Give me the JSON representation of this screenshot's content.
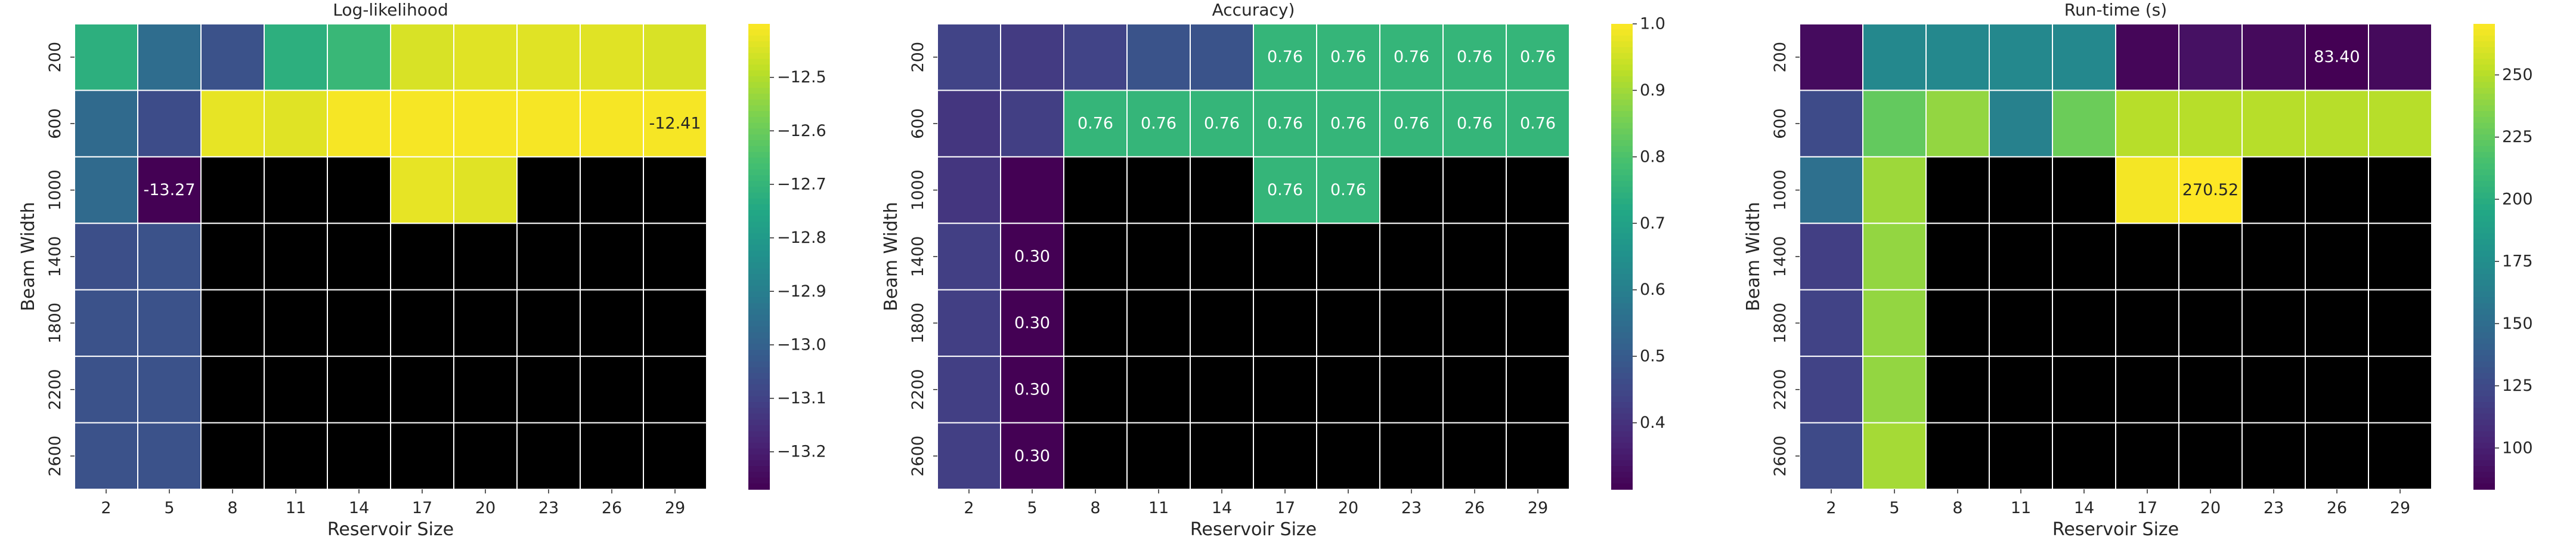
{
  "chart_data": [
    {
      "type": "heatmap",
      "title": "Log-likelihood",
      "xlabel": "Reservoir Size",
      "ylabel": "Beam Width",
      "x": [
        "2",
        "5",
        "8",
        "11",
        "14",
        "17",
        "20",
        "23",
        "26",
        "29"
      ],
      "y": [
        "200",
        "600",
        "1000",
        "1400",
        "1800",
        "2200",
        "2600"
      ],
      "values": [
        [
          -12.72,
          -12.96,
          -13.05,
          -12.72,
          -12.69,
          -12.45,
          -12.44,
          -12.44,
          -12.44,
          -12.45
        ],
        [
          -12.97,
          -13.07,
          -12.43,
          -12.44,
          -12.41,
          -12.41,
          -12.41,
          -12.41,
          -12.41,
          -12.41
        ],
        [
          -12.97,
          -13.27,
          null,
          null,
          null,
          -12.43,
          -12.44,
          null,
          null,
          null
        ],
        [
          -13.06,
          -13.05,
          null,
          null,
          null,
          null,
          null,
          null,
          null,
          null
        ],
        [
          -13.05,
          -13.05,
          null,
          null,
          null,
          null,
          null,
          null,
          null,
          null
        ],
        [
          -13.05,
          -13.05,
          null,
          null,
          null,
          null,
          null,
          null,
          null,
          null
        ],
        [
          -13.05,
          -13.05,
          null,
          null,
          null,
          null,
          null,
          null,
          null,
          null
        ]
      ],
      "annotations": [
        {
          "row": 2,
          "col": 1,
          "text": "-13.27",
          "color": "#ffffff"
        },
        {
          "row": 1,
          "col": 9,
          "text": "-12.41",
          "color": "#262626"
        }
      ],
      "colorbar": {
        "min": -13.27,
        "max": -12.4,
        "ticks": [
          -13.2,
          -13.1,
          -13.0,
          -12.9,
          -12.8,
          -12.7,
          -12.6,
          -12.5
        ],
        "tick_labels": [
          "−13.2",
          "−13.1",
          "−13.0",
          "−12.9",
          "−12.8",
          "−12.7",
          "−12.6",
          "−12.5"
        ]
      },
      "missing_color": "#000000"
    },
    {
      "type": "heatmap",
      "title": "Accuracy)",
      "xlabel": "Reservoir Size",
      "ylabel": "Beam Width",
      "x": [
        "2",
        "5",
        "8",
        "11",
        "14",
        "17",
        "20",
        "23",
        "26",
        "29"
      ],
      "y": [
        "200",
        "600",
        "1000",
        "1400",
        "1800",
        "2200",
        "2600"
      ],
      "values": [
        [
          0.44,
          0.42,
          0.44,
          0.48,
          0.48,
          0.76,
          0.76,
          0.76,
          0.76,
          0.76
        ],
        [
          0.41,
          0.43,
          0.76,
          0.76,
          0.76,
          0.76,
          0.76,
          0.76,
          0.76,
          0.76
        ],
        [
          0.41,
          0.3,
          null,
          null,
          null,
          0.76,
          0.76,
          null,
          null,
          null
        ],
        [
          0.43,
          0.3,
          null,
          null,
          null,
          null,
          null,
          null,
          null,
          null
        ],
        [
          0.43,
          0.3,
          null,
          null,
          null,
          null,
          null,
          null,
          null,
          null
        ],
        [
          0.43,
          0.3,
          null,
          null,
          null,
          null,
          null,
          null,
          null,
          null
        ],
        [
          0.43,
          0.3,
          null,
          null,
          null,
          null,
          null,
          null,
          null,
          null
        ]
      ],
      "annotations": [
        {
          "row": 0,
          "col": 5,
          "text": "0.76",
          "color": "#ffffff"
        },
        {
          "row": 0,
          "col": 6,
          "text": "0.76",
          "color": "#ffffff"
        },
        {
          "row": 0,
          "col": 7,
          "text": "0.76",
          "color": "#ffffff"
        },
        {
          "row": 0,
          "col": 8,
          "text": "0.76",
          "color": "#ffffff"
        },
        {
          "row": 0,
          "col": 9,
          "text": "0.76",
          "color": "#ffffff"
        },
        {
          "row": 1,
          "col": 2,
          "text": "0.76",
          "color": "#ffffff"
        },
        {
          "row": 1,
          "col": 3,
          "text": "0.76",
          "color": "#ffffff"
        },
        {
          "row": 1,
          "col": 4,
          "text": "0.76",
          "color": "#ffffff"
        },
        {
          "row": 1,
          "col": 5,
          "text": "0.76",
          "color": "#ffffff"
        },
        {
          "row": 1,
          "col": 6,
          "text": "0.76",
          "color": "#ffffff"
        },
        {
          "row": 1,
          "col": 7,
          "text": "0.76",
          "color": "#ffffff"
        },
        {
          "row": 1,
          "col": 8,
          "text": "0.76",
          "color": "#ffffff"
        },
        {
          "row": 1,
          "col": 9,
          "text": "0.76",
          "color": "#ffffff"
        },
        {
          "row": 2,
          "col": 5,
          "text": "0.76",
          "color": "#ffffff"
        },
        {
          "row": 2,
          "col": 6,
          "text": "0.76",
          "color": "#ffffff"
        },
        {
          "row": 3,
          "col": 1,
          "text": "0.30",
          "color": "#ffffff"
        },
        {
          "row": 4,
          "col": 1,
          "text": "0.30",
          "color": "#ffffff"
        },
        {
          "row": 5,
          "col": 1,
          "text": "0.30",
          "color": "#ffffff"
        },
        {
          "row": 6,
          "col": 1,
          "text": "0.30",
          "color": "#ffffff"
        }
      ],
      "colorbar": {
        "min": 0.3,
        "max": 1.0,
        "ticks": [
          0.4,
          0.5,
          0.6,
          0.7,
          0.8,
          0.9,
          1.0
        ],
        "tick_labels": [
          "0.4",
          "0.5",
          "0.6",
          "0.7",
          "0.8",
          "0.9",
          "1.0"
        ]
      },
      "missing_color": "#000000"
    },
    {
      "type": "heatmap",
      "title": "Run-time (s)",
      "xlabel": "Reservoir Size",
      "ylabel": "Beam Width",
      "x": [
        "2",
        "5",
        "8",
        "11",
        "14",
        "17",
        "20",
        "23",
        "26",
        "29"
      ],
      "y": [
        "200",
        "600",
        "1000",
        "1400",
        "1800",
        "2200",
        "2600"
      ],
      "values": [
        [
          89,
          170,
          170,
          170,
          170,
          86,
          92,
          88,
          83.4,
          88
        ],
        [
          126,
          225,
          240,
          165,
          228,
          250,
          250,
          250,
          250,
          250
        ],
        [
          152,
          243,
          null,
          null,
          null,
          268,
          270.52,
          null,
          null,
          null
        ],
        [
          118,
          240,
          null,
          null,
          null,
          null,
          null,
          null,
          null,
          null
        ],
        [
          120,
          240,
          null,
          null,
          null,
          null,
          null,
          null,
          null,
          null
        ],
        [
          120,
          240,
          null,
          null,
          null,
          null,
          null,
          null,
          null,
          null
        ],
        [
          125,
          245,
          null,
          null,
          null,
          null,
          null,
          null,
          null,
          null
        ]
      ],
      "annotations": [
        {
          "row": 0,
          "col": 8,
          "text": "83.40",
          "color": "#ffffff"
        },
        {
          "row": 2,
          "col": 6,
          "text": "270.52",
          "color": "#262626"
        }
      ],
      "colorbar": {
        "min": 83.4,
        "max": 270.52,
        "ticks": [
          100,
          125,
          150,
          175,
          200,
          225,
          250
        ],
        "tick_labels": [
          "100",
          "125",
          "150",
          "175",
          "200",
          "225",
          "250"
        ]
      },
      "missing_color": "#000000"
    }
  ]
}
